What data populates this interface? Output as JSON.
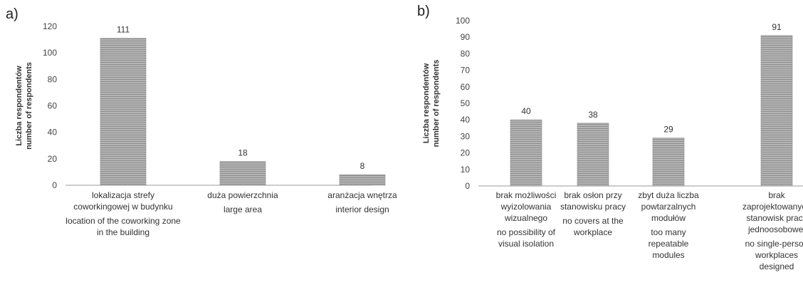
{
  "chart_data": [
    {
      "type": "bar",
      "panel_label": "a)",
      "ylabel": [
        "Liczba respondentów",
        "number of respondents"
      ],
      "xlabel": "",
      "ylim": [
        0,
        120
      ],
      "yticks": [
        0,
        20,
        40,
        60,
        80,
        100,
        120
      ],
      "grid": false,
      "categories": [
        {
          "pl": [
            "lokalizacja strefy",
            "coworkingowej w budynku"
          ],
          "en": [
            "location of the coworking zone",
            "in the building"
          ]
        },
        {
          "pl": [
            "duża powierzchnia"
          ],
          "en": [
            "large area"
          ]
        },
        {
          "pl": [
            "aranżacja wnętrza"
          ],
          "en": [
            "interior design"
          ]
        }
      ],
      "values": [
        111,
        18,
        8
      ],
      "data_labels": [
        "111",
        "18",
        "8"
      ]
    },
    {
      "type": "bar",
      "panel_label": "b)",
      "ylabel": [
        "Liczba respondentów",
        "number of respondents"
      ],
      "xlabel": "",
      "ylim": [
        0,
        100
      ],
      "yticks": [
        0,
        10,
        20,
        30,
        40,
        50,
        60,
        70,
        80,
        90,
        100
      ],
      "grid": false,
      "categories": [
        {
          "pl": [
            "brak możliwości",
            "wyizolowania",
            "wizualnego"
          ],
          "en": [
            "no possibility of",
            "visual isolation"
          ]
        },
        {
          "pl": [
            "brak osłon przy",
            "stanowisku pracy"
          ],
          "en": [
            "no covers at the",
            "workplace"
          ]
        },
        {
          "pl": [
            "zbyt duża liczba",
            "powtarzalnych",
            "modułów"
          ],
          "en": [
            "too many",
            "repeatable",
            "modules"
          ]
        },
        {
          "pl": [
            "brak",
            "zaprojektowanych",
            "stanowisk pracy",
            "jednoosobowej"
          ],
          "en": [
            "no single-person",
            "workplaces",
            "designed"
          ]
        }
      ],
      "values": [
        40,
        38,
        29,
        91
      ],
      "data_labels": [
        "40",
        "38",
        "29",
        "91"
      ]
    }
  ],
  "colors": {
    "bar_fill": "#b4b4b4",
    "bar_stripe": "#8e8e8e",
    "bar_edge": "#8a8a8a",
    "axis": "#9a9a9a",
    "text": "#333333"
  }
}
